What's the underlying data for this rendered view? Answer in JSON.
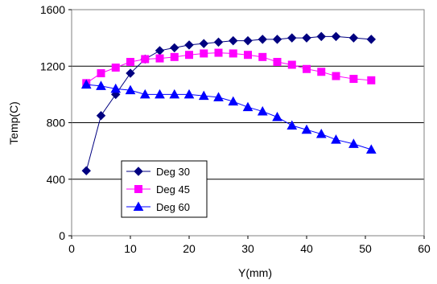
{
  "chart_data": {
    "type": "line",
    "xlabel": "Y(mm)",
    "ylabel": "Temp(C)",
    "xlim": [
      0,
      60
    ],
    "ylim": [
      0,
      1600
    ],
    "xticks": [
      0,
      10,
      20,
      30,
      40,
      50,
      60
    ],
    "yticks": [
      0,
      400,
      800,
      1200,
      1600
    ],
    "grid": "horizontal",
    "legend_position": "bottom-left",
    "series": [
      {
        "name": "Deg 30",
        "marker": "diamond",
        "color": "#000080",
        "x": [
          2.5,
          5,
          7.5,
          10,
          12.5,
          15,
          17.5,
          20,
          22.5,
          25,
          27.5,
          30,
          32.5,
          35,
          37.5,
          40,
          42.5,
          45,
          48,
          51
        ],
        "y": [
          460,
          850,
          1000,
          1150,
          1250,
          1310,
          1330,
          1350,
          1360,
          1370,
          1380,
          1380,
          1390,
          1390,
          1400,
          1400,
          1410,
          1410,
          1400,
          1390
        ]
      },
      {
        "name": "Deg 45",
        "marker": "square",
        "color": "#ff00ff",
        "x": [
          2.5,
          5,
          7.5,
          10,
          12.5,
          15,
          17.5,
          20,
          22.5,
          25,
          27.5,
          30,
          32.5,
          35,
          37.5,
          40,
          42.5,
          45,
          48,
          51
        ],
        "y": [
          1080,
          1150,
          1190,
          1230,
          1250,
          1255,
          1265,
          1280,
          1290,
          1295,
          1290,
          1280,
          1265,
          1230,
          1210,
          1180,
          1160,
          1130,
          1110,
          1100
        ]
      },
      {
        "name": "Deg 60",
        "marker": "triangle",
        "color": "#0000ff",
        "x": [
          2.5,
          5,
          7.5,
          10,
          12.5,
          15,
          17.5,
          20,
          22.5,
          25,
          27.5,
          30,
          32.5,
          35,
          37.5,
          40,
          42.5,
          45,
          48,
          51
        ],
        "y": [
          1070,
          1060,
          1040,
          1030,
          1000,
          1000,
          1000,
          1000,
          990,
          980,
          950,
          910,
          880,
          840,
          780,
          750,
          720,
          680,
          650,
          610
        ]
      }
    ]
  }
}
